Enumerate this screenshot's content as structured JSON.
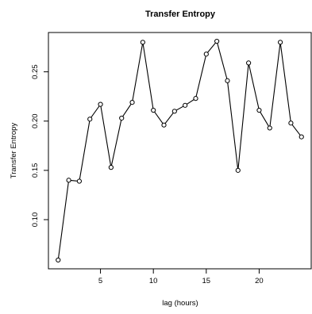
{
  "chart_data": {
    "type": "line",
    "title": "Transfer Entropy",
    "xlabel": "lag (hours)",
    "ylabel": "Transfer Entropy",
    "x": [
      1,
      2,
      3,
      4,
      5,
      6,
      7,
      8,
      9,
      10,
      11,
      12,
      13,
      14,
      15,
      16,
      17,
      18,
      19,
      20,
      21,
      22,
      23,
      24
    ],
    "series": [
      {
        "values": [
          0.059,
          0.14,
          0.139,
          0.202,
          0.217,
          0.153,
          0.203,
          0.219,
          0.28,
          0.211,
          0.196,
          0.21,
          0.216,
          0.223,
          0.268,
          0.281,
          0.241,
          0.15,
          0.259,
          0.211,
          0.193,
          0.28,
          0.198,
          0.184
        ]
      }
    ],
    "xticks": [
      5,
      10,
      15,
      20
    ],
    "yticks": [
      0.1,
      0.15,
      0.2,
      0.25
    ],
    "xtick_labels": [
      "5",
      "10",
      "15",
      "20"
    ],
    "ytick_labels": [
      "0.10",
      "0.15",
      "0.20",
      "0.25"
    ],
    "xlim": [
      0.08,
      24.92
    ],
    "ylim": [
      0.0501,
      0.2899
    ],
    "grid": false,
    "marker": "open-circle"
  }
}
